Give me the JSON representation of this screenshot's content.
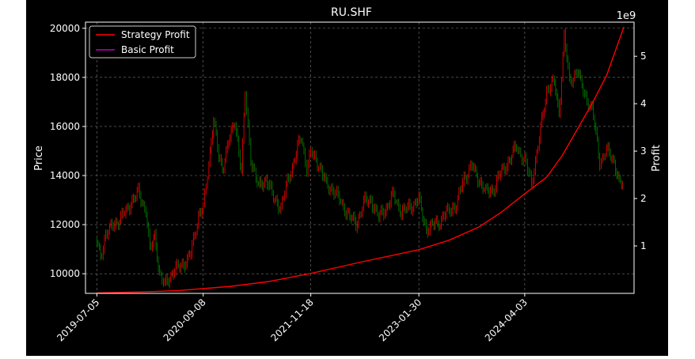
{
  "chart_data": {
    "type": "line",
    "title": "RU.SHF",
    "xlabel": "",
    "ylabel_left": "Price",
    "ylabel_right": "Profit",
    "right_axis_multiplier": "1e9",
    "x_tick_labels": [
      "2019-07-05",
      "2020-09-08",
      "2021-11-18",
      "2023-01-30",
      "2024-04-03"
    ],
    "y_left_ticks": [
      10000,
      12000,
      14000,
      16000,
      18000,
      20000
    ],
    "y_right_ticks": [
      1,
      2,
      3,
      4,
      5
    ],
    "y_left_lim": [
      9200,
      20250
    ],
    "y_right_lim": [
      0.0,
      5.72
    ],
    "grid": true,
    "legend_position": "upper-left",
    "legend": [
      {
        "name": "Strategy Profit",
        "color": "#ff0000"
      },
      {
        "name": "Basic Profit",
        "color": "#bf00bf"
      }
    ],
    "candle_colors": {
      "up": "#ff0000",
      "down": "#008000"
    },
    "price_series": {
      "name": "Price",
      "x": [
        "2019-07-05",
        "2019-07-20",
        "2019-08-10",
        "2019-09-10",
        "2019-10-15",
        "2019-11-20",
        "2019-12-20",
        "2020-01-20",
        "2020-02-05",
        "2020-02-25",
        "2020-03-15",
        "2020-04-05",
        "2020-04-25",
        "2020-05-20",
        "2020-06-20",
        "2020-07-20",
        "2020-08-20",
        "2020-09-08",
        "2020-10-01",
        "2020-10-20",
        "2020-11-10",
        "2020-11-25",
        "2020-12-15",
        "2021-01-15",
        "2021-02-10",
        "2021-02-25",
        "2021-03-20",
        "2021-04-20",
        "2021-05-20",
        "2021-06-20",
        "2021-07-20",
        "2021-08-20",
        "2021-09-20",
        "2021-10-10",
        "2021-11-01",
        "2021-11-18",
        "2021-12-20",
        "2022-01-20",
        "2022-02-20",
        "2022-03-20",
        "2022-04-20",
        "2022-05-20",
        "2022-06-20",
        "2022-07-20",
        "2022-08-20",
        "2022-09-20",
        "2022-10-20",
        "2022-11-20",
        "2022-12-20",
        "2023-01-30",
        "2023-03-01",
        "2023-04-01",
        "2023-05-01",
        "2023-06-01",
        "2023-07-01",
        "2023-08-01",
        "2023-09-01",
        "2023-10-01",
        "2023-11-01",
        "2023-12-01",
        "2024-01-01",
        "2024-02-01",
        "2024-03-01",
        "2024-04-03",
        "2024-05-01",
        "2024-06-01",
        "2024-07-01",
        "2024-08-01",
        "2024-08-20",
        "2024-09-10",
        "2024-10-01",
        "2024-11-01",
        "2024-12-01",
        "2025-01-01",
        "2025-02-01",
        "2025-03-01",
        "2025-04-01",
        "2025-04-20",
        "2025-05-10"
      ],
      "values": [
        11300,
        10700,
        11600,
        12000,
        12300,
        12900,
        13300,
        12600,
        10900,
        11600,
        10000,
        9500,
        9900,
        10200,
        10400,
        10800,
        12400,
        12700,
        14500,
        16400,
        14700,
        14300,
        15200,
        16200,
        14200,
        17300,
        14700,
        13500,
        13900,
        13100,
        12700,
        13900,
        14900,
        15600,
        14300,
        14900,
        14500,
        13600,
        13400,
        12900,
        12400,
        12000,
        12900,
        13000,
        12300,
        12700,
        13200,
        12500,
        12700,
        13000,
        11800,
        12000,
        12200,
        12600,
        12800,
        13900,
        14400,
        13800,
        13300,
        13500,
        14200,
        14600,
        15200,
        14600,
        13700,
        15500,
        17500,
        17800,
        16500,
        19700,
        17800,
        18300,
        17300,
        16700,
        14600,
        15000,
        14600,
        13700,
        13600
      ]
    },
    "profit_series": {
      "name": "Strategy Profit",
      "x": [
        "2019-07-05",
        "2020-01-01",
        "2020-06-01",
        "2020-09-08",
        "2021-01-01",
        "2021-06-01",
        "2021-11-18",
        "2022-06-01",
        "2023-01-30",
        "2023-06-01",
        "2023-10-01",
        "2024-01-01",
        "2024-04-03",
        "2024-07-01",
        "2024-09-01",
        "2024-11-01",
        "2025-01-01",
        "2025-03-01",
        "2025-05-10"
      ],
      "values": [
        0.01,
        0.03,
        0.06,
        0.1,
        0.15,
        0.25,
        0.42,
        0.65,
        0.92,
        1.12,
        1.4,
        1.72,
        2.1,
        2.45,
        2.9,
        3.45,
        4.0,
        4.6,
        5.62
      ]
    }
  }
}
